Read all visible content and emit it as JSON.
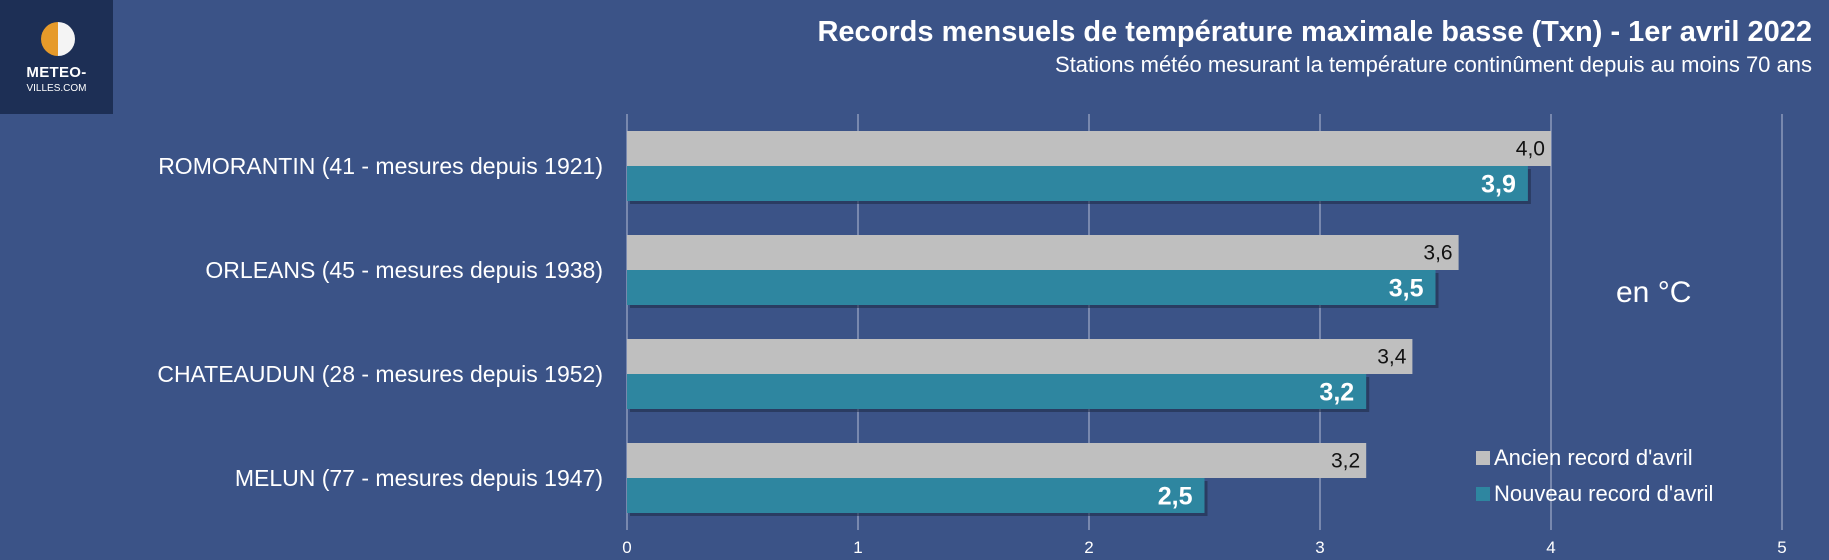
{
  "logo": {
    "line1": "METEO-",
    "line2": "VILLES.COM"
  },
  "chart_data": {
    "type": "bar",
    "orientation": "horizontal",
    "title": "Records mensuels de température maximale basse (Txn) - 1er avril 2022",
    "subtitle": "Stations météo mesurant la température continûment depuis au moins 70 ans",
    "unit_label": "en °C",
    "categories": [
      "ROMORANTIN (41 - mesures depuis 1921)",
      "ORLEANS (45 - mesures depuis 1938)",
      "CHATEAUDUN (28 - mesures depuis 1952)",
      "MELUN (77 - mesures depuis 1947)"
    ],
    "series": [
      {
        "name": "Ancien record d'avril",
        "values": [
          4.0,
          3.6,
          3.4,
          3.2
        ],
        "labels": [
          "4,0",
          "3,6",
          "3,4",
          "3,2"
        ],
        "color": "#bfbfbf"
      },
      {
        "name": "Nouveau record d'avril",
        "values": [
          3.9,
          3.5,
          3.2,
          2.5
        ],
        "labels": [
          "3,9",
          "3,5",
          "3,2",
          "2,5"
        ],
        "color": "#2e86a0"
      }
    ],
    "xlim": [
      0,
      5
    ],
    "xticks": [
      "0",
      "1",
      "2",
      "3",
      "4",
      "5"
    ],
    "grid": true,
    "legend_position": "bottom-right"
  }
}
